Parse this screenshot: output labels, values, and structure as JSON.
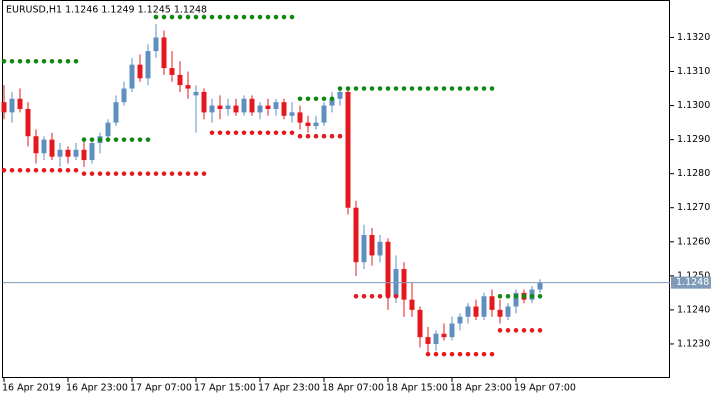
{
  "chart_data": {
    "type": "candlestick",
    "title": "EURUSD,H1 1.1246 1.1249 1.1245 1.1248",
    "categories": [
      "16 Apr 2019",
      null,
      null,
      null,
      null,
      null,
      null,
      null,
      "16 Apr 23:00",
      null,
      null,
      null,
      null,
      null,
      null,
      null,
      "17 Apr 07:00",
      null,
      null,
      null,
      null,
      null,
      null,
      null,
      "17 Apr 15:00",
      null,
      null,
      null,
      null,
      null,
      null,
      null,
      "17 Apr 23:00",
      null,
      null,
      null,
      null,
      null,
      null,
      null,
      "18 Apr 07:00",
      null,
      null,
      null,
      null,
      null,
      null,
      null,
      "18 Apr 15:00",
      null,
      null,
      null,
      null,
      null,
      null,
      null,
      "18 Apr 23:00",
      null,
      null,
      null,
      null,
      null,
      null,
      null,
      "19 Apr 07:00",
      null,
      null,
      null
    ],
    "open": [
      1.1301,
      1.1298,
      1.1302,
      1.1299,
      1.1291,
      1.1286,
      1.129,
      1.1285,
      1.1287,
      1.1285,
      1.1287,
      1.1284,
      1.1289,
      1.1291,
      1.1295,
      1.1301,
      1.1305,
      1.1312,
      1.1308,
      1.1316,
      1.132,
      1.1311,
      1.1309,
      1.1306,
      1.1303,
      1.1304,
      1.1298,
      1.13,
      1.1299,
      1.13,
      1.1298,
      1.1302,
      1.1298,
      1.13,
      1.1299,
      1.1301,
      1.1297,
      1.1298,
      1.1295,
      1.1294,
      1.1295,
      1.13,
      1.1302,
      1.1304,
      1.127,
      1.1254,
      1.1262,
      1.1256,
      1.126,
      1.1244,
      1.1252,
      1.1243,
      1.124,
      1.1232,
      1.123,
      1.1233,
      1.1232,
      1.1236,
      1.1238,
      1.1241,
      1.1238,
      1.1244,
      1.124,
      1.1238,
      1.1241,
      1.1245,
      1.1243,
      1.1246
    ],
    "high": [
      1.1306,
      1.1304,
      1.1305,
      1.1301,
      1.1293,
      1.1291,
      1.1292,
      1.1289,
      1.1288,
      1.1289,
      1.129,
      1.129,
      1.1292,
      1.1296,
      1.1303,
      1.1307,
      1.1314,
      1.1315,
      1.1318,
      1.1324,
      1.1322,
      1.1316,
      1.1313,
      1.131,
      1.1306,
      1.1305,
      1.1302,
      1.1303,
      1.1302,
      1.1302,
      1.1303,
      1.1303,
      1.1301,
      1.1302,
      1.1302,
      1.1302,
      1.1301,
      1.13,
      1.1297,
      1.1297,
      1.1301,
      1.1304,
      1.1305,
      1.1305,
      1.1272,
      1.1265,
      1.1264,
      1.1262,
      1.1261,
      1.1256,
      1.1254,
      1.1248,
      1.1241,
      1.1235,
      1.1234,
      1.1236,
      1.1238,
      1.1239,
      1.1242,
      1.1243,
      1.1245,
      1.1246,
      1.1243,
      1.1242,
      1.1246,
      1.1246,
      1.1247,
      1.1249
    ],
    "low": [
      1.1296,
      1.1295,
      1.1298,
      1.1288,
      1.1283,
      1.1284,
      1.1284,
      1.1282,
      1.1283,
      1.1284,
      1.1282,
      1.1283,
      1.1286,
      1.129,
      1.1294,
      1.13,
      1.1304,
      1.1307,
      1.1306,
      1.1314,
      1.1309,
      1.1307,
      1.1304,
      1.1302,
      1.1292,
      1.1296,
      1.1295,
      1.1296,
      1.1297,
      1.1297,
      1.1297,
      1.1297,
      1.1296,
      1.1297,
      1.1297,
      1.1296,
      1.1295,
      1.1293,
      1.1292,
      1.1293,
      1.1294,
      1.1298,
      1.13,
      1.1268,
      1.125,
      1.1252,
      1.1253,
      1.1254,
      1.124,
      1.1242,
      1.1238,
      1.1238,
      1.1229,
      1.1227,
      1.1228,
      1.1231,
      1.1231,
      1.1234,
      1.1236,
      1.1237,
      1.1237,
      1.1238,
      1.1236,
      1.1237,
      1.1239,
      1.1242,
      1.1242,
      1.1245
    ],
    "close": [
      1.1298,
      1.1302,
      1.1299,
      1.1291,
      1.1286,
      1.129,
      1.1285,
      1.1287,
      1.1285,
      1.1287,
      1.1284,
      1.1289,
      1.1291,
      1.1295,
      1.1301,
      1.1305,
      1.1312,
      1.1308,
      1.1316,
      1.132,
      1.1311,
      1.1309,
      1.1306,
      1.1305,
      1.1304,
      1.1298,
      1.13,
      1.1299,
      1.13,
      1.1298,
      1.1302,
      1.1298,
      1.13,
      1.1299,
      1.1301,
      1.1297,
      1.1298,
      1.1295,
      1.1294,
      1.1295,
      1.13,
      1.1302,
      1.1304,
      1.127,
      1.1254,
      1.1262,
      1.1256,
      1.126,
      1.1244,
      1.1252,
      1.1243,
      1.124,
      1.1232,
      1.123,
      1.1233,
      1.1232,
      1.1236,
      1.1238,
      1.1241,
      1.1238,
      1.1244,
      1.124,
      1.1238,
      1.1241,
      1.1245,
      1.1243,
      1.1246,
      1.1248
    ],
    "up_color": "#5f8fbf",
    "down_color": "#e3191f",
    "upper_levels": {
      "color": "#118811",
      "values": [
        1.1313,
        1.1313,
        1.1313,
        1.1313,
        1.1313,
        1.1313,
        1.1313,
        1.1313,
        1.1313,
        1.1313,
        1.129,
        1.129,
        1.129,
        1.129,
        1.129,
        1.129,
        1.129,
        1.129,
        1.129,
        1.1326,
        1.1326,
        1.1326,
        1.1326,
        1.1326,
        1.1326,
        1.1326,
        1.1326,
        1.1326,
        1.1326,
        1.1326,
        1.1326,
        1.1326,
        1.1326,
        1.1326,
        1.1326,
        1.1326,
        1.1326,
        1.1302,
        1.1302,
        1.1302,
        1.1302,
        1.1302,
        1.1305,
        1.1305,
        1.1305,
        1.1305,
        1.1305,
        1.1305,
        1.1305,
        1.1305,
        1.1305,
        1.1305,
        1.1305,
        1.1305,
        1.1305,
        1.1305,
        1.1305,
        1.1305,
        1.1305,
        1.1305,
        1.1305,
        1.1305,
        1.1244,
        1.1244,
        1.1244,
        1.1244,
        1.1244,
        1.1244
      ]
    },
    "lower_levels": {
      "color": "#e3191f",
      "values": [
        1.1281,
        1.1281,
        1.1281,
        1.1281,
        1.1281,
        1.1281,
        1.1281,
        1.1281,
        1.1281,
        1.1281,
        1.128,
        1.128,
        1.128,
        1.128,
        1.128,
        1.128,
        1.128,
        1.128,
        1.128,
        1.128,
        1.128,
        1.128,
        1.128,
        1.128,
        1.128,
        1.128,
        1.1292,
        1.1292,
        1.1292,
        1.1292,
        1.1292,
        1.1292,
        1.1292,
        1.1292,
        1.1292,
        1.1292,
        1.1292,
        1.1291,
        1.1291,
        1.1291,
        1.1291,
        1.1291,
        1.1291,
        null,
        1.1244,
        1.1244,
        1.1244,
        1.1244,
        1.1244,
        1.1244,
        1.1244,
        null,
        null,
        1.1227,
        1.1227,
        1.1227,
        1.1227,
        1.1227,
        1.1227,
        1.1227,
        1.1227,
        1.1227,
        1.1234,
        1.1234,
        1.1234,
        1.1234,
        1.1234,
        1.1234
      ]
    },
    "ylim": [
      1.122,
      1.1331
    ],
    "yticks": [
      {
        "value": 1.123,
        "label": "1.1230"
      },
      {
        "value": 1.124,
        "label": "1.1240"
      },
      {
        "value": 1.125,
        "label": "1.1250"
      },
      {
        "value": 1.126,
        "label": "1.1260"
      },
      {
        "value": 1.127,
        "label": "1.1270"
      },
      {
        "value": 1.128,
        "label": "1.1280"
      },
      {
        "value": 1.129,
        "label": "1.1290"
      },
      {
        "value": 1.13,
        "label": "1.1300"
      },
      {
        "value": 1.131,
        "label": "1.1310"
      },
      {
        "value": 1.132,
        "label": "1.1320"
      }
    ],
    "price_line": {
      "value": 1.1248,
      "label": "1.1248"
    },
    "price_line_color": "#7f9bb8"
  }
}
